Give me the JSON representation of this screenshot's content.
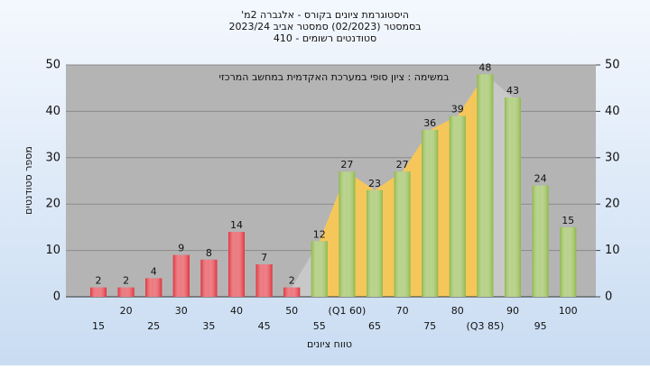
{
  "chart_data": {
    "type": "bar",
    "title": "היסטוגרמת ציונים בקורס - אלגברה 2מ'",
    "subtitle": "בסמסטר  (02/2023)  סמסטר אביב 2023/24",
    "subtitle2": "סטודנטים רשומים - 410",
    "annotation": "במשימה : ציון סופי במערכת האקדמית במחשב המרכזי",
    "x_label": "טווח ציונים",
    "y_label": "מספר סטודנטים",
    "categories": [
      "15",
      "20",
      "25",
      "30",
      "35",
      "40",
      "45",
      "50",
      "55",
      "(Q1 60)",
      "65",
      "70",
      "75",
      "80",
      "(Q3 85)",
      "90",
      "95",
      "100"
    ],
    "values": [
      2,
      2,
      4,
      9,
      8,
      14,
      7,
      2,
      12,
      27,
      23,
      27,
      36,
      39,
      48,
      43,
      24,
      15
    ],
    "colors": [
      "#e0303a",
      "#e0303a",
      "#e0303a",
      "#e0303a",
      "#e0303a",
      "#e0303a",
      "#e0303a",
      "#e0303a",
      "#8fb84a",
      "#8fb84a",
      "#8fb84a",
      "#8fb84a",
      "#8fb84a",
      "#8fb84a",
      "#8fb84a",
      "#8fb84a",
      "#8fb84a",
      "#8fb84a"
    ],
    "ylim": [
      0,
      50
    ],
    "yticks": [
      0,
      10,
      20,
      30,
      40,
      50
    ],
    "y2lim": [
      0,
      50
    ],
    "y2ticks": [
      0,
      10,
      20,
      30,
      40,
      50
    ],
    "grid": true
  }
}
